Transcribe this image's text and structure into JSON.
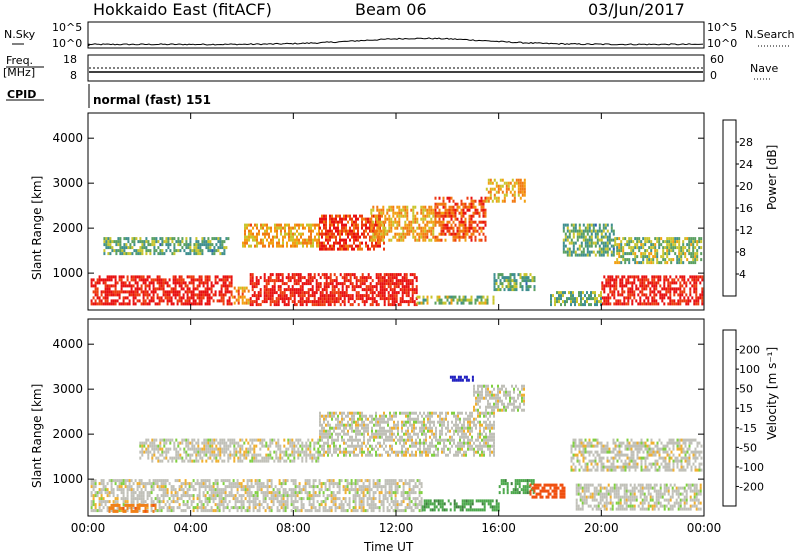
{
  "header": {
    "station": "Hokkaido East (fitACF)",
    "beam": "Beam 06",
    "date": "03/Jun/2017"
  },
  "side_labels": {
    "nsky": "N.Sky",
    "freq": "Freq.",
    "freq_unit": "[MHz]",
    "cpid": "CPID",
    "nsearch": "N.Search",
    "nave": "Nave"
  },
  "top_panels": {
    "nsky_ticks": [
      "10^5",
      "10^0"
    ],
    "nsearch_ticks": [
      "10^5",
      "10^0"
    ],
    "freq_ticks": [
      "18",
      "8"
    ],
    "nave_ticks": [
      "60",
      "0"
    ],
    "cpid_text": "normal (fast) 151"
  },
  "chart_data": [
    {
      "type": "heatmap",
      "panel": "power",
      "ylabel": "Slant Range [km]",
      "xlabel": "",
      "x_range_hours": [
        0,
        24
      ],
      "y_range_km": [
        180,
        4560
      ],
      "y_ticks": [
        "1000",
        "2000",
        "3000",
        "4000"
      ],
      "y_tick_values": [
        1000,
        2000,
        3000,
        4000
      ],
      "x_ticks": [
        "00:00",
        "04:00",
        "08:00",
        "12:00",
        "16:00",
        "20:00",
        "00:00"
      ],
      "x_tick_values": [
        0,
        4,
        8,
        12,
        16,
        20,
        24
      ],
      "colorbar": {
        "label": "Power [dB]",
        "ticks": [
          "4",
          "8",
          "12",
          "16",
          "20",
          "24",
          "28"
        ],
        "tick_values": [
          4,
          8,
          12,
          16,
          20,
          24,
          28
        ],
        "range": [
          0,
          32
        ],
        "colors": [
          "#0022ee",
          "#2b5fb0",
          "#3f8f8f",
          "#5aa060",
          "#c9c52e",
          "#f3a012",
          "#f27a12",
          "#ee3c10",
          "#e81010"
        ]
      },
      "regions": [
        {
          "t0": 0.1,
          "t1": 5.6,
          "r0": 300,
          "r1": 950,
          "value": 30
        },
        {
          "t0": 5.6,
          "t1": 6.3,
          "r0": 300,
          "r1": 700,
          "value": 22
        },
        {
          "t0": 6.3,
          "t1": 12.8,
          "r0": 300,
          "r1": 1000,
          "value": 30
        },
        {
          "t0": 12.8,
          "t1": 15.8,
          "r0": 300,
          "r1": 500,
          "value": 14
        },
        {
          "t0": 15.8,
          "t1": 17.4,
          "r0": 600,
          "r1": 1000,
          "value": 12
        },
        {
          "t0": 0.6,
          "t1": 5.5,
          "r0": 1400,
          "r1": 1800,
          "value": 12
        },
        {
          "t0": 6.0,
          "t1": 9.0,
          "r0": 1600,
          "r1": 2100,
          "value": 20
        },
        {
          "t0": 9.0,
          "t1": 11.5,
          "r0": 1500,
          "r1": 2300,
          "value": 28
        },
        {
          "t0": 11.0,
          "t1": 13.5,
          "r0": 1700,
          "r1": 2500,
          "value": 20
        },
        {
          "t0": 13.5,
          "t1": 15.5,
          "r0": 1700,
          "r1": 2700,
          "value": 26
        },
        {
          "t0": 15.5,
          "t1": 17.0,
          "r0": 2600,
          "r1": 3100,
          "value": 20
        },
        {
          "t0": 18.5,
          "t1": 20.5,
          "r0": 1400,
          "r1": 2100,
          "value": 12
        },
        {
          "t0": 20.5,
          "t1": 23.9,
          "r0": 1200,
          "r1": 1800,
          "value": 14
        },
        {
          "t0": 20.0,
          "t1": 23.9,
          "r0": 300,
          "r1": 950,
          "value": 30
        },
        {
          "t0": 18.0,
          "t1": 20.0,
          "r0": 300,
          "r1": 600,
          "value": 12
        }
      ]
    },
    {
      "type": "heatmap",
      "panel": "velocity",
      "ylabel": "Slant Range [km]",
      "xlabel": "Time UT",
      "x_range_hours": [
        0,
        24
      ],
      "y_range_km": [
        180,
        4560
      ],
      "y_ticks": [
        "1000",
        "2000",
        "3000",
        "4000"
      ],
      "y_tick_values": [
        1000,
        2000,
        3000,
        4000
      ],
      "x_ticks": [
        "00:00",
        "04:00",
        "08:00",
        "12:00",
        "16:00",
        "20:00",
        "00:00"
      ],
      "x_tick_values": [
        0,
        4,
        8,
        12,
        16,
        20,
        24
      ],
      "colorbar": {
        "label": "Velocity [m s⁻¹]",
        "ticks": [
          "200",
          "100",
          "50",
          "15",
          "-15",
          "-50",
          "-100",
          "-200"
        ],
        "colors": [
          "#2020c0",
          "#3f7f3f",
          "#4ca84c",
          "#80d040",
          "#c0c0b8",
          "#f0b030",
          "#f08018",
          "#f05010",
          "#e81010"
        ]
      },
      "regions": [
        {
          "t0": 0.1,
          "t1": 13.0,
          "r0": 300,
          "r1": 1000,
          "value": 0
        },
        {
          "t0": 0.8,
          "t1": 2.6,
          "r0": 300,
          "r1": 450,
          "value": -60
        },
        {
          "t0": 13.0,
          "t1": 16.0,
          "r0": 300,
          "r1": 550,
          "value": 60
        },
        {
          "t0": 16.0,
          "t1": 17.4,
          "r0": 700,
          "r1": 1000,
          "value": 60
        },
        {
          "t0": 17.2,
          "t1": 18.6,
          "r0": 600,
          "r1": 900,
          "value": -120
        },
        {
          "t0": 2.0,
          "t1": 9.0,
          "r0": 1400,
          "r1": 1900,
          "value": 0
        },
        {
          "t0": 9.0,
          "t1": 15.8,
          "r0": 1500,
          "r1": 2500,
          "value": 0
        },
        {
          "t0": 15.0,
          "t1": 17.0,
          "r0": 2500,
          "r1": 3100,
          "value": 0
        },
        {
          "t0": 18.8,
          "t1": 23.9,
          "r0": 1200,
          "r1": 1900,
          "value": 0
        },
        {
          "t0": 19.0,
          "t1": 23.9,
          "r0": 300,
          "r1": 900,
          "value": 0
        },
        {
          "t0": 14.1,
          "t1": 15.0,
          "r0": 3200,
          "r1": 3300,
          "value": 220
        }
      ]
    }
  ]
}
